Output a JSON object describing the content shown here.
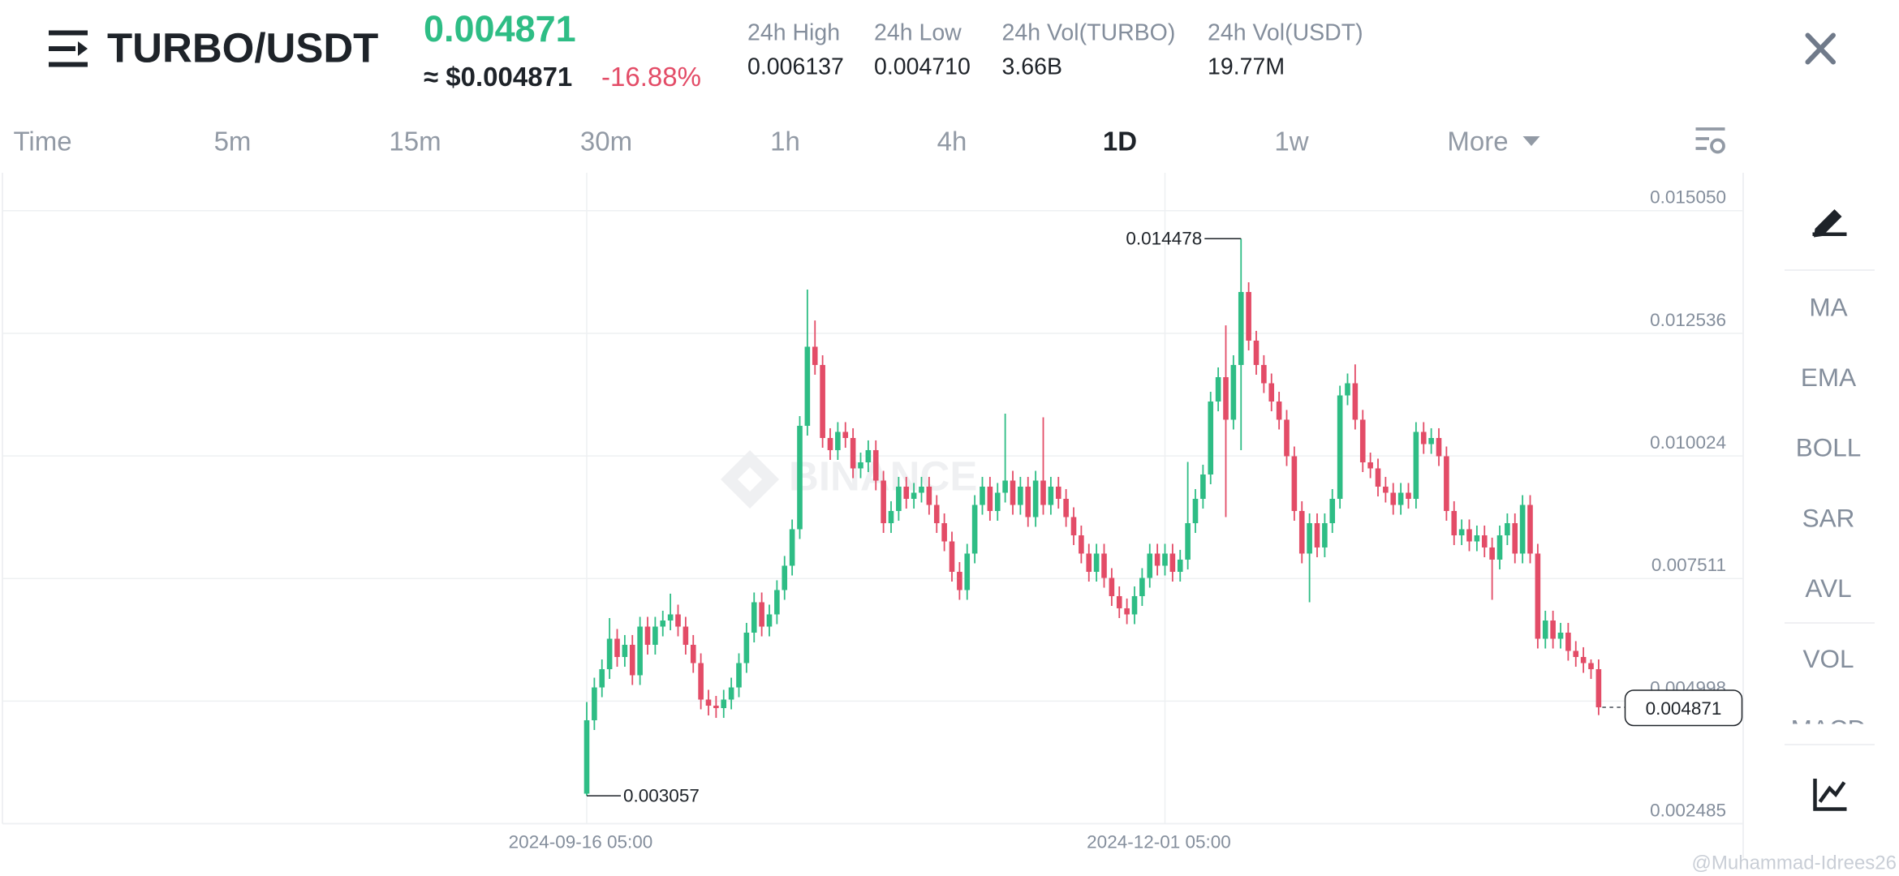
{
  "header": {
    "pair": "TURBO/USDT",
    "price": "0.004871",
    "fiat_price": "≈ $0.004871",
    "change": "-16.88%",
    "stats": [
      {
        "label": "24h High",
        "value": "0.006137"
      },
      {
        "label": "24h Low",
        "value": "0.004710"
      },
      {
        "label": "24h Vol(TURBO)",
        "value": "3.66B"
      },
      {
        "label": "24h Vol(USDT)",
        "value": "19.77M"
      }
    ]
  },
  "timeframes": [
    "Time",
    "5m",
    "15m",
    "30m",
    "1h",
    "4h",
    "1D",
    "1w",
    "More"
  ],
  "indicators": [
    "MA",
    "EMA",
    "BOLL",
    "SAR",
    "AVL",
    "VOL",
    "MACD"
  ],
  "watermark_logo": "BINANCE",
  "watermark": "@Muhammad-Idrees26",
  "chart_data": {
    "type": "candlestick",
    "up_color": "#2ebd85",
    "down_color": "#e34c67",
    "grid": true,
    "ylim": [
      0.002485,
      0.015828
    ],
    "yticks": [
      {
        "value": 0.01505,
        "label": "0.015050"
      },
      0.012536,
      0.010024,
      0.007511,
      0.004998,
      0.002485
    ],
    "categories": [
      "2024-09-16 05:00",
      null,
      null,
      null,
      null,
      null,
      null,
      null,
      null,
      null,
      null,
      null,
      null,
      null,
      null,
      null,
      null,
      null,
      null,
      null,
      null,
      null,
      null,
      null,
      null,
      null,
      null,
      null,
      null,
      null,
      null,
      null,
      null,
      null,
      null,
      null,
      null,
      null,
      null,
      null,
      null,
      null,
      null,
      null,
      null,
      null,
      null,
      null,
      null,
      null,
      null,
      null,
      null,
      null,
      null,
      null,
      null,
      null,
      null,
      null,
      null,
      null,
      null,
      null,
      null,
      null,
      null,
      null,
      null,
      null,
      null,
      null,
      null,
      null,
      null,
      null,
      "2024-12-01 05:00",
      null,
      null,
      null,
      null,
      null,
      null,
      null,
      null,
      null,
      null,
      null,
      null,
      null,
      null,
      null,
      null,
      null,
      null,
      null,
      null,
      null,
      null,
      null,
      null,
      null,
      null,
      null,
      null,
      null,
      null,
      null,
      null,
      null,
      null,
      null,
      null,
      null,
      null,
      null,
      null,
      null,
      null,
      null,
      null,
      null,
      null,
      null,
      null,
      null,
      null,
      null,
      null,
      null,
      null,
      null,
      null
    ],
    "candles": [
      [
        0.0031,
        0.004979,
        0.003057,
        0.004605
      ],
      [
        0.004605,
        0.005478,
        0.004405,
        0.005278
      ],
      [
        0.005278,
        0.005852,
        0.005078,
        0.005652
      ],
      [
        0.005652,
        0.0067,
        0.005452,
        0.006276
      ],
      [
        0.006276,
        0.006476,
        0.005702,
        0.005902
      ],
      [
        0.005902,
        0.006352,
        0.005702,
        0.006152
      ],
      [
        0.006152,
        0.006352,
        0.005328,
        0.005528
      ],
      [
        0.005528,
        0.006725,
        0.005328,
        0.006525
      ],
      [
        0.006525,
        0.006725,
        0.005952,
        0.006152
      ],
      [
        0.006152,
        0.006725,
        0.005952,
        0.006525
      ],
      [
        0.006525,
        0.00685,
        0.006325,
        0.00665
      ],
      [
        0.00665,
        0.0072,
        0.00645,
        0.006775
      ],
      [
        0.006775,
        0.006975,
        0.006325,
        0.006525
      ],
      [
        0.006525,
        0.006725,
        0.005952,
        0.006152
      ],
      [
        0.006152,
        0.006352,
        0.005577,
        0.005777
      ],
      [
        0.005777,
        0.005977,
        0.004829,
        0.005029
      ],
      [
        0.005029,
        0.005229,
        0.004704,
        0.004904
      ],
      [
        0.004904,
        0.005104,
        0.004654,
        0.004854
      ],
      [
        0.004854,
        0.005229,
        0.004654,
        0.005029
      ],
      [
        0.005029,
        0.005478,
        0.004829,
        0.005278
      ],
      [
        0.005278,
        0.005977,
        0.005078,
        0.005777
      ],
      [
        0.005777,
        0.006601,
        0.005577,
        0.006401
      ],
      [
        0.006401,
        0.007224,
        0.006201,
        0.007024
      ],
      [
        0.007024,
        0.007224,
        0.006325,
        0.006525
      ],
      [
        0.006525,
        0.006975,
        0.006325,
        0.006775
      ],
      [
        0.006775,
        0.007474,
        0.006575,
        0.007274
      ],
      [
        0.007274,
        0.007973,
        0.007074,
        0.007773
      ],
      [
        0.007773,
        0.008721,
        0.007573,
        0.008521
      ],
      [
        0.008521,
        0.010841,
        0.008321,
        0.010641
      ],
      [
        0.010641,
        0.013434,
        0.010441,
        0.012262
      ],
      [
        0.012262,
        0.0128,
        0.011688,
        0.011888
      ],
      [
        0.011888,
        0.012088,
        0.010191,
        0.010391
      ],
      [
        0.010391,
        0.010591,
        0.009942,
        0.010142
      ],
      [
        0.010142,
        0.010716,
        0.009942,
        0.010516
      ],
      [
        0.010516,
        0.010716,
        0.010191,
        0.010391
      ],
      [
        0.010391,
        0.010591,
        0.009568,
        0.009768
      ],
      [
        0.009768,
        0.010092,
        0.009568,
        0.009892
      ],
      [
        0.009892,
        0.010342,
        0.009692,
        0.010142
      ],
      [
        0.010142,
        0.010342,
        0.009318,
        0.009518
      ],
      [
        0.009518,
        0.009718,
        0.008445,
        0.008645
      ],
      [
        0.008645,
        0.009095,
        0.008445,
        0.008895
      ],
      [
        0.008895,
        0.009594,
        0.008695,
        0.009394
      ],
      [
        0.009394,
        0.009594,
        0.008944,
        0.009144
      ],
      [
        0.009144,
        0.009469,
        0.008944,
        0.009269
      ],
      [
        0.009269,
        0.009594,
        0.009069,
        0.009394
      ],
      [
        0.009394,
        0.009594,
        0.008819,
        0.009019
      ],
      [
        0.009019,
        0.009219,
        0.008445,
        0.008645
      ],
      [
        0.008645,
        0.008845,
        0.008071,
        0.008271
      ],
      [
        0.008271,
        0.008471,
        0.007448,
        0.007648
      ],
      [
        0.007648,
        0.007848,
        0.007074,
        0.007274
      ],
      [
        0.007274,
        0.008222,
        0.007074,
        0.008022
      ],
      [
        0.008022,
        0.009219,
        0.007822,
        0.009019
      ],
      [
        0.009019,
        0.009594,
        0.008819,
        0.009394
      ],
      [
        0.009394,
        0.009594,
        0.008695,
        0.008895
      ],
      [
        0.008895,
        0.009469,
        0.008695,
        0.009269
      ],
      [
        0.009269,
        0.01089,
        0.009069,
        0.009518
      ],
      [
        0.009518,
        0.009718,
        0.008819,
        0.009019
      ],
      [
        0.009019,
        0.009594,
        0.008819,
        0.009394
      ],
      [
        0.009394,
        0.009594,
        0.00857,
        0.00877
      ],
      [
        0.00877,
        0.009718,
        0.00857,
        0.009518
      ],
      [
        0.009518,
        0.010815,
        0.008819,
        0.009019
      ],
      [
        0.009019,
        0.009594,
        0.008819,
        0.009394
      ],
      [
        0.009394,
        0.009594,
        0.008944,
        0.009144
      ],
      [
        0.009144,
        0.009344,
        0.00857,
        0.00877
      ],
      [
        0.00877,
        0.00897,
        0.008196,
        0.008396
      ],
      [
        0.008396,
        0.008596,
        0.007822,
        0.008022
      ],
      [
        0.008022,
        0.008222,
        0.007448,
        0.007648
      ],
      [
        0.007648,
        0.008222,
        0.007448,
        0.008022
      ],
      [
        0.008022,
        0.008222,
        0.007323,
        0.007523
      ],
      [
        0.007523,
        0.007723,
        0.006949,
        0.007149
      ],
      [
        0.007149,
        0.007349,
        0.0067,
        0.0069
      ],
      [
        0.0069,
        0.0071,
        0.006575,
        0.006775
      ],
      [
        0.006775,
        0.007349,
        0.006575,
        0.007149
      ],
      [
        0.007149,
        0.007723,
        0.006949,
        0.007523
      ],
      [
        0.007523,
        0.008222,
        0.007323,
        0.008022
      ],
      [
        0.008022,
        0.008222,
        0.007573,
        0.007773
      ],
      [
        0.007773,
        0.008222,
        0.007573,
        0.008022
      ],
      [
        0.008022,
        0.008222,
        0.007448,
        0.007648
      ],
      [
        0.007648,
        0.008098,
        0.007448,
        0.007898
      ],
      [
        0.007898,
        0.0099,
        0.007698,
        0.008645
      ],
      [
        0.008645,
        0.009344,
        0.008445,
        0.009144
      ],
      [
        0.009144,
        0.009843,
        0.008944,
        0.009643
      ],
      [
        0.009643,
        0.011339,
        0.009443,
        0.011139
      ],
      [
        0.011139,
        0.011838,
        0.010939,
        0.011638
      ],
      [
        0.011638,
        0.0127,
        0.00877,
        0.010766
      ],
      [
        0.010766,
        0.012088,
        0.010566,
        0.011888
      ],
      [
        0.011888,
        0.014478,
        0.010142,
        0.013384
      ],
      [
        0.013384,
        0.013584,
        0.012187,
        0.012387
      ],
      [
        0.012387,
        0.012587,
        0.011688,
        0.011888
      ],
      [
        0.011888,
        0.012088,
        0.011313,
        0.011513
      ],
      [
        0.011513,
        0.011713,
        0.010939,
        0.011139
      ],
      [
        0.011139,
        0.011339,
        0.010566,
        0.010766
      ],
      [
        0.010766,
        0.010966,
        0.009817,
        0.010017
      ],
      [
        0.010017,
        0.010217,
        0.008695,
        0.008895
      ],
      [
        0.008895,
        0.009095,
        0.007822,
        0.008022
      ],
      [
        0.008022,
        0.008845,
        0.007024,
        0.008645
      ],
      [
        0.008645,
        0.008845,
        0.007947,
        0.008147
      ],
      [
        0.008147,
        0.008845,
        0.007947,
        0.008645
      ],
      [
        0.008645,
        0.009344,
        0.008445,
        0.009144
      ],
      [
        0.009144,
        0.011464,
        0.008944,
        0.011264
      ],
      [
        0.011264,
        0.011713,
        0.011064,
        0.011513
      ],
      [
        0.011513,
        0.0119,
        0.010566,
        0.010766
      ],
      [
        0.010766,
        0.010966,
        0.009692,
        0.009892
      ],
      [
        0.009892,
        0.010092,
        0.009568,
        0.009768
      ],
      [
        0.009768,
        0.009968,
        0.009194,
        0.009394
      ],
      [
        0.009394,
        0.009594,
        0.009069,
        0.009269
      ],
      [
        0.009269,
        0.009469,
        0.008819,
        0.009019
      ],
      [
        0.009019,
        0.009469,
        0.008819,
        0.009269
      ],
      [
        0.009269,
        0.009469,
        0.008944,
        0.009144
      ],
      [
        0.009144,
        0.010716,
        0.008944,
        0.010516
      ],
      [
        0.010516,
        0.010716,
        0.010066,
        0.010266
      ],
      [
        0.010266,
        0.010591,
        0.010066,
        0.010391
      ],
      [
        0.010391,
        0.010591,
        0.009817,
        0.010017
      ],
      [
        0.010017,
        0.010217,
        0.008695,
        0.008895
      ],
      [
        0.008895,
        0.009095,
        0.008196,
        0.008396
      ],
      [
        0.008396,
        0.008721,
        0.008196,
        0.008521
      ],
      [
        0.008521,
        0.008721,
        0.008071,
        0.008271
      ],
      [
        0.008271,
        0.008596,
        0.008071,
        0.008396
      ],
      [
        0.008396,
        0.008596,
        0.007947,
        0.008147
      ],
      [
        0.008147,
        0.008347,
        0.007074,
        0.007898
      ],
      [
        0.007898,
        0.008596,
        0.007698,
        0.008396
      ],
      [
        0.008396,
        0.008845,
        0.008196,
        0.008645
      ],
      [
        0.008645,
        0.008845,
        0.007822,
        0.008022
      ],
      [
        0.008022,
        0.009219,
        0.007822,
        0.009019
      ],
      [
        0.009019,
        0.009219,
        0.007822,
        0.008022
      ],
      [
        0.008022,
        0.008222,
        0.006076,
        0.006276
      ],
      [
        0.006276,
        0.00685,
        0.006076,
        0.00665
      ],
      [
        0.00665,
        0.00685,
        0.006076,
        0.006276
      ],
      [
        0.006276,
        0.006601,
        0.006076,
        0.006401
      ],
      [
        0.006401,
        0.006601,
        0.005827,
        0.006027
      ],
      [
        0.006027,
        0.006227,
        0.005702,
        0.005902
      ],
      [
        0.005902,
        0.006102,
        0.005577,
        0.005777
      ],
      [
        0.005777,
        0.005852,
        0.005452,
        0.005652
      ],
      [
        0.005652,
        0.005852,
        0.00471,
        0.004871
      ]
    ]
  }
}
